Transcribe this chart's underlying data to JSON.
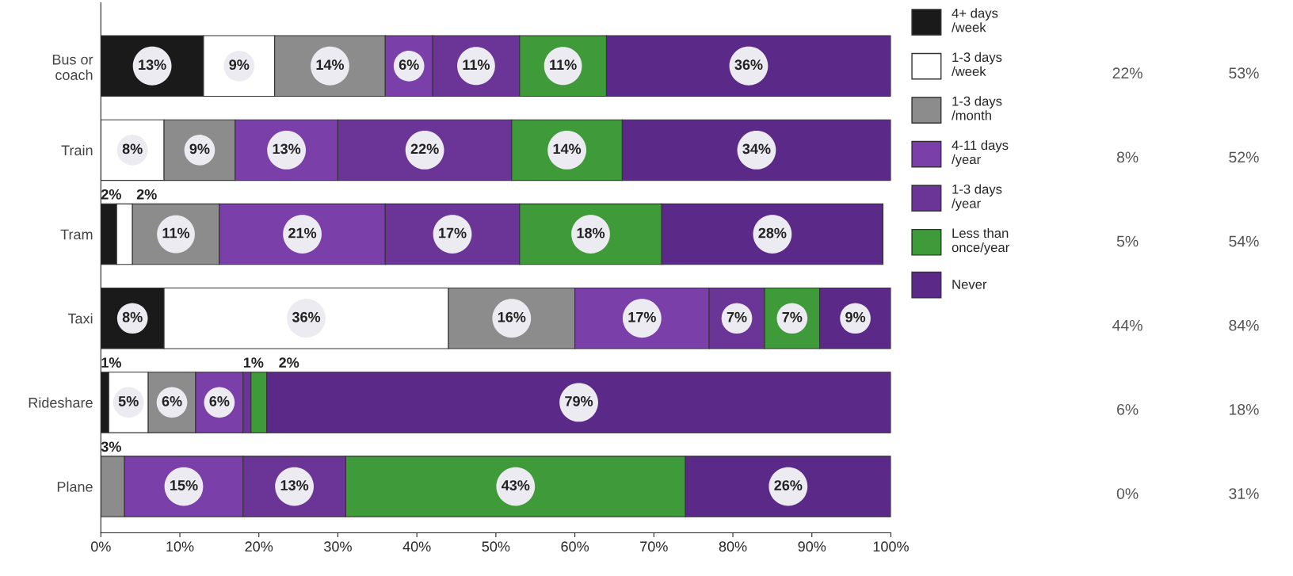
{
  "chart_data": {
    "type": "bar",
    "orientation": "horizontal",
    "stacked": true,
    "categories": [
      "Bus or\ncoach",
      "Train",
      "Tram",
      "Taxi",
      "Rideshare",
      "Plane"
    ],
    "series": [
      {
        "name": "4+ days\n/week",
        "color": "#1a1a1a",
        "values": [
          13,
          0,
          2,
          8,
          1,
          0
        ],
        "value_labels": [
          "13%",
          null,
          "2%",
          "8%",
          "1%",
          null
        ]
      },
      {
        "name": "1-3 days\n/week",
        "color": "#ffffff",
        "values": [
          9,
          8,
          2,
          36,
          5,
          0
        ],
        "value_labels": [
          "9%",
          "8%",
          "2%",
          "36%",
          "5%",
          null
        ]
      },
      {
        "name": "1-3 days\n/month",
        "color": "#8c8c8c",
        "values": [
          14,
          9,
          11,
          16,
          6,
          3
        ],
        "value_labels": [
          "14%",
          "9%",
          "11%",
          "16%",
          "6%",
          "3%"
        ]
      },
      {
        "name": "4-11 days\n/year",
        "color": "#7a3fa8",
        "values": [
          6,
          13,
          21,
          17,
          6,
          15
        ],
        "value_labels": [
          "6%",
          "13%",
          "21%",
          "17%",
          "6%",
          "15%"
        ]
      },
      {
        "name": "1-3 days\n/year",
        "color": "#6b3597",
        "values": [
          11,
          22,
          17,
          7,
          1,
          13
        ],
        "value_labels": [
          "11%",
          "22%",
          "17%",
          "7%",
          "1%",
          "13%"
        ]
      },
      {
        "name": "Less than\nonce/year",
        "color": "#3f9a3a",
        "values": [
          11,
          14,
          18,
          7,
          2,
          43
        ],
        "value_labels": [
          "11%",
          "14%",
          "18%",
          "7%",
          "2%",
          "43%"
        ]
      },
      {
        "name": "Never",
        "color": "#5b2a88",
        "values": [
          36,
          34,
          28,
          9,
          79,
          26
        ],
        "value_labels": [
          "36%",
          "34%",
          "28%",
          "9%",
          "79%",
          "26%"
        ]
      }
    ],
    "xlim": [
      0,
      100
    ],
    "xticks": [
      {
        "value": 0,
        "label": "0%"
      },
      {
        "value": 10,
        "label": "10%"
      },
      {
        "value": 20,
        "label": "20%"
      },
      {
        "value": 30,
        "label": "30%"
      },
      {
        "value": 40,
        "label": "40%"
      },
      {
        "value": 50,
        "label": "50%"
      },
      {
        "value": 60,
        "label": "60%"
      },
      {
        "value": 70,
        "label": "70%"
      },
      {
        "value": 80,
        "label": "80%"
      },
      {
        "value": 90,
        "label": "90%"
      },
      {
        "value": 100,
        "label": "100%"
      }
    ],
    "legend": "right",
    "grid": false,
    "annotations": [
      "22%",
      "53%",
      "8%",
      "52%",
      "5%",
      "54%",
      "44%",
      "84%",
      "6%",
      "18%",
      "0%",
      "31%"
    ]
  }
}
